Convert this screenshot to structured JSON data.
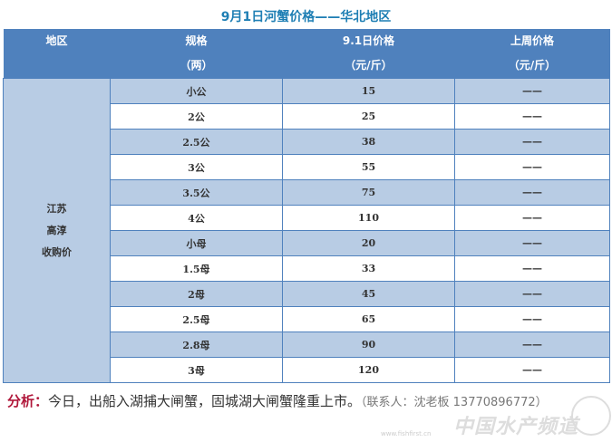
{
  "title": "9月1日河蟹价格——华北地区",
  "colors": {
    "header": "#4f81bd",
    "row_alt": "#b8cce4",
    "title": "#1f7fb4",
    "analysis_label": "#b0173a"
  },
  "table": {
    "headers": [
      {
        "line1": "地区",
        "line2": ""
      },
      {
        "line1": "规格",
        "line2": "（两）"
      },
      {
        "line1": "9.1日价格",
        "line2": "（元/斤）"
      },
      {
        "line1": "上周价格",
        "line2": "（元/斤）"
      }
    ],
    "region": [
      "江苏",
      "高淳",
      "收购价"
    ],
    "rows": [
      {
        "spec": "小公",
        "price": "15",
        "last": "——"
      },
      {
        "spec": "2公",
        "price": "25",
        "last": "——"
      },
      {
        "spec": "2.5公",
        "price": "38",
        "last": "——"
      },
      {
        "spec": "3公",
        "price": "55",
        "last": "——"
      },
      {
        "spec": "3.5公",
        "price": "75",
        "last": "——"
      },
      {
        "spec": "4公",
        "price": "110",
        "last": "——"
      },
      {
        "spec": "小母",
        "price": "20",
        "last": "——"
      },
      {
        "spec": "1.5母",
        "price": "33",
        "last": "——"
      },
      {
        "spec": "2母",
        "price": "45",
        "last": "——"
      },
      {
        "spec": "2.5母",
        "price": "65",
        "last": "——"
      },
      {
        "spec": "2.8母",
        "price": "90",
        "last": "——"
      },
      {
        "spec": "3母",
        "price": "120",
        "last": "——"
      }
    ]
  },
  "analysis": {
    "label": "分析：",
    "text": "今日，出船入湖捕大闸蟹，固城湖大闸蟹隆重上市。",
    "contact": "（联系人：沈老板 13770896772）"
  },
  "watermark": {
    "name": "中国水产频道",
    "url": "www.fishfirst.cn"
  }
}
